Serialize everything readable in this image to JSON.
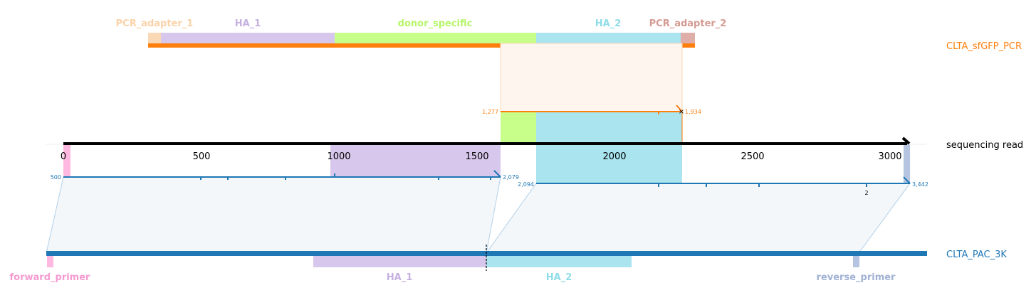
{
  "colors": {
    "pcr_orange": "#ff7f0e",
    "pac_blue": "#1f77b4",
    "pcr_adapter_1": "#fbd8b5",
    "ha_1": "#d8c7ec",
    "donor_specific": "#c8ff8a",
    "ha_2": "#a9e4ef",
    "pcr_adapter_2": "#dfaea8",
    "forward_primer": "#ffb8e0",
    "reverse_primer": "#b5c4e0",
    "label_pcr_adapter_1": "#fbd2a7",
    "label_ha_1": "#c5b0e0",
    "label_donor_specific": "#b6f56a",
    "label_ha_2": "#8fdde8",
    "label_pcr_adapter_2": "#d59a92",
    "label_forward_primer": "#f59bd1",
    "label_reverse_primer": "#a1b2d4"
  },
  "references": {
    "top": "CLTA_sfGFP_PCR",
    "middle": "sequencing read",
    "bottom": "CLTA_PAC_3K"
  },
  "top_features": [
    {
      "label": "PCR_adapter_1",
      "color_key": "pcr_adapter_1",
      "label_color_key": "label_pcr_adapter_1"
    },
    {
      "label": "HA_1",
      "color_key": "ha_1",
      "label_color_key": "label_ha_1"
    },
    {
      "label": "donor_specific",
      "color_key": "donor_specific",
      "label_color_key": "label_donor_specific"
    },
    {
      "label": "HA_2",
      "color_key": "ha_2",
      "label_color_key": "label_ha_2"
    },
    {
      "label": "PCR_adapter_2",
      "color_key": "pcr_adapter_2",
      "label_color_key": "label_pcr_adapter_2"
    }
  ],
  "bottom_features": [
    {
      "label": "forward_primer",
      "color_key": "forward_primer",
      "label_color_key": "label_forward_primer"
    },
    {
      "label": "HA_1",
      "color_key": "ha_1",
      "label_color_key": "label_ha_1"
    },
    {
      "label": "HA_2",
      "color_key": "ha_2",
      "label_color_key": "label_ha_2"
    },
    {
      "label": "reverse_primer",
      "color_key": "reverse_primer",
      "label_color_key": "label_reverse_primer"
    }
  ],
  "read_axis": {
    "ticks": [
      "0",
      "500",
      "1000",
      "1500",
      "2000",
      "2500",
      "3000"
    ]
  },
  "alignments": {
    "top": {
      "start_label": "1,277",
      "end_label": "1,934"
    },
    "bottom_left": {
      "start_label": "500",
      "end_label": "2,079"
    },
    "bottom_right": {
      "start_label": "2,094",
      "end_label": "3,442",
      "note": "2"
    }
  }
}
